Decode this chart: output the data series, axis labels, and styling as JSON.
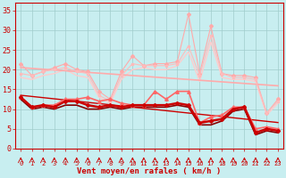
{
  "background_color": "#c8eef0",
  "grid_color": "#a0cccc",
  "xlabel": "Vent moyen/en rafales ( km/h )",
  "x_ticks": [
    0,
    1,
    2,
    3,
    4,
    5,
    6,
    7,
    8,
    9,
    10,
    11,
    12,
    13,
    14,
    15,
    16,
    17,
    18,
    19,
    20,
    21,
    22,
    23
  ],
  "ylim": [
    0,
    37
  ],
  "yticks": [
    0,
    5,
    10,
    15,
    20,
    25,
    30,
    35
  ],
  "series": [
    {
      "name": "rafales_max",
      "color": "#ffaaaa",
      "linewidth": 0.8,
      "marker": "D",
      "markersize": 2.0,
      "values": [
        21.5,
        18.5,
        19.5,
        20.5,
        21.5,
        20.0,
        19.5,
        14.5,
        12.5,
        19.5,
        23.5,
        21.0,
        21.5,
        21.5,
        22.0,
        34.0,
        19.0,
        31.0,
        19.0,
        18.5,
        18.5,
        18.0,
        9.0,
        12.5
      ]
    },
    {
      "name": "rafales_upper",
      "color": "#ffbbbb",
      "linewidth": 0.8,
      "marker": "s",
      "markersize": 2.0,
      "values": [
        19.0,
        18.5,
        19.5,
        20.0,
        20.5,
        19.5,
        19.0,
        13.5,
        12.0,
        18.5,
        21.5,
        21.0,
        21.0,
        21.0,
        21.5,
        26.0,
        18.5,
        28.5,
        19.0,
        18.0,
        18.0,
        17.5,
        9.0,
        12.0
      ]
    },
    {
      "name": "rafales_lower",
      "color": "#ffcccc",
      "linewidth": 1.0,
      "marker": null,
      "markersize": 0,
      "values": [
        18.0,
        17.5,
        18.5,
        19.0,
        20.0,
        18.5,
        18.0,
        13.0,
        11.5,
        17.5,
        20.0,
        20.5,
        20.0,
        20.0,
        21.0,
        24.5,
        17.0,
        27.0,
        18.0,
        17.5,
        17.5,
        17.0,
        8.5,
        11.5
      ]
    },
    {
      "name": "moyen_upper",
      "color": "#ff6666",
      "linewidth": 1.2,
      "marker": "^",
      "markersize": 2.5,
      "values": [
        13.0,
        10.5,
        11.0,
        11.0,
        12.5,
        12.5,
        13.0,
        12.0,
        12.5,
        11.5,
        11.0,
        11.0,
        14.5,
        12.5,
        14.5,
        14.5,
        6.5,
        8.0,
        8.5,
        10.5,
        10.5,
        5.0,
        5.5,
        5.0
      ]
    },
    {
      "name": "moyen_mean",
      "color": "#cc0000",
      "linewidth": 1.8,
      "marker": "D",
      "markersize": 2.0,
      "values": [
        13.0,
        10.5,
        11.0,
        10.5,
        12.0,
        12.0,
        11.0,
        10.5,
        11.0,
        10.5,
        11.0,
        11.0,
        11.0,
        11.0,
        11.5,
        11.0,
        6.5,
        7.0,
        7.5,
        10.0,
        10.5,
        4.0,
        5.0,
        4.5
      ]
    },
    {
      "name": "moyen_lower",
      "color": "#880000",
      "linewidth": 1.2,
      "marker": null,
      "markersize": 0,
      "values": [
        12.5,
        10.0,
        10.5,
        10.0,
        11.0,
        11.0,
        10.0,
        10.0,
        10.5,
        10.0,
        10.5,
        10.5,
        10.5,
        10.5,
        11.0,
        10.5,
        6.0,
        6.0,
        7.0,
        9.5,
        10.0,
        3.5,
        4.5,
        4.0
      ]
    },
    {
      "name": "trend_rafales",
      "color": "#ffaaaa",
      "linewidth": 1.2,
      "marker": null,
      "markersize": 0,
      "values": [
        20.5,
        20.3,
        20.1,
        19.9,
        19.7,
        19.5,
        19.3,
        19.1,
        18.9,
        18.7,
        18.5,
        18.3,
        18.1,
        17.9,
        17.7,
        17.5,
        17.3,
        17.1,
        16.9,
        16.7,
        16.5,
        16.3,
        16.1,
        15.9
      ]
    },
    {
      "name": "trend_moyen",
      "color": "#cc0000",
      "linewidth": 1.0,
      "marker": null,
      "markersize": 0,
      "values": [
        13.5,
        13.2,
        12.9,
        12.6,
        12.3,
        12.0,
        11.7,
        11.4,
        11.1,
        10.8,
        10.5,
        10.2,
        9.9,
        9.6,
        9.3,
        9.0,
        8.7,
        8.4,
        8.1,
        7.8,
        7.5,
        7.2,
        6.9,
        6.6
      ]
    }
  ],
  "wind_angles": [
    225,
    225,
    225,
    225,
    225,
    225,
    225,
    225,
    225,
    225,
    225,
    225,
    225,
    225,
    225,
    180,
    135,
    225,
    225,
    225,
    225,
    225,
    135,
    225
  ],
  "wind_arrow_color": "#cc0000",
  "tick_color": "#cc0000",
  "label_color": "#cc0000",
  "tick_fontsize": 5,
  "xlabel_fontsize": 6.5
}
